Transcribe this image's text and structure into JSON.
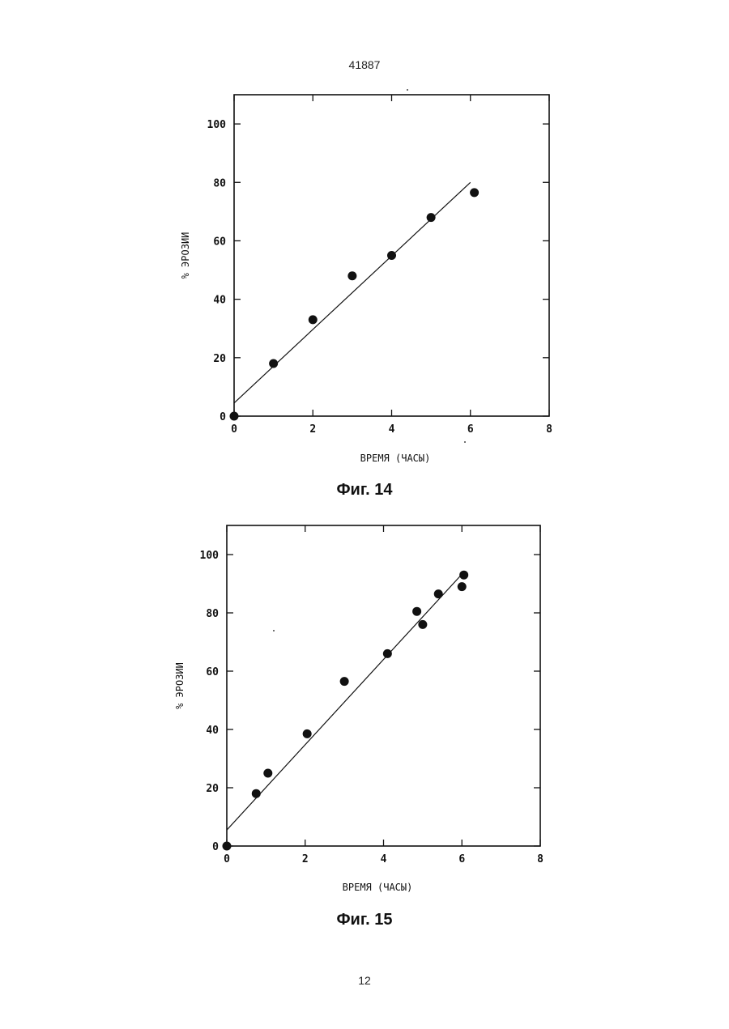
{
  "page": {
    "header": "41887",
    "footer": "12"
  },
  "captions": [
    "Фиг. 14",
    "Фиг. 15"
  ],
  "chart_data": [
    {
      "type": "scatter",
      "title": "",
      "xlabel": "ВРЕМЯ (ЧАСЫ)",
      "ylabel": "% ЭРОЗИИ",
      "xlim": [
        0,
        8
      ],
      "ylim": [
        0,
        110
      ],
      "xticks": [
        0,
        2,
        4,
        6,
        8
      ],
      "yticks": [
        0,
        20,
        40,
        60,
        80,
        100
      ],
      "grid": false,
      "series": [
        {
          "x": [
            0,
            1,
            2,
            3,
            4,
            5,
            6.1
          ],
          "y": [
            0,
            18,
            33,
            48,
            55,
            68,
            76.5
          ]
        }
      ],
      "fit_line": {
        "x": [
          0,
          6
        ],
        "y": [
          4.5,
          80
        ]
      }
    },
    {
      "type": "scatter",
      "title": "",
      "xlabel": "ВРЕМЯ (ЧАСЫ)",
      "ylabel": "% ЭРОЗИИ",
      "xlim": [
        0,
        8
      ],
      "ylim": [
        0,
        110
      ],
      "xticks": [
        0,
        2,
        4,
        6,
        8
      ],
      "yticks": [
        0,
        20,
        40,
        60,
        80,
        100
      ],
      "grid": false,
      "series": [
        {
          "x": [
            0,
            0.75,
            1.05,
            2.05,
            3,
            4.1,
            4.85,
            5,
            5.4,
            6,
            6.05
          ],
          "y": [
            0,
            18,
            25,
            38.5,
            56.5,
            66,
            80.5,
            76,
            86.5,
            89,
            93
          ]
        }
      ],
      "fit_line": {
        "x": [
          0,
          6.05
        ],
        "y": [
          5.5,
          94
        ]
      }
    }
  ]
}
